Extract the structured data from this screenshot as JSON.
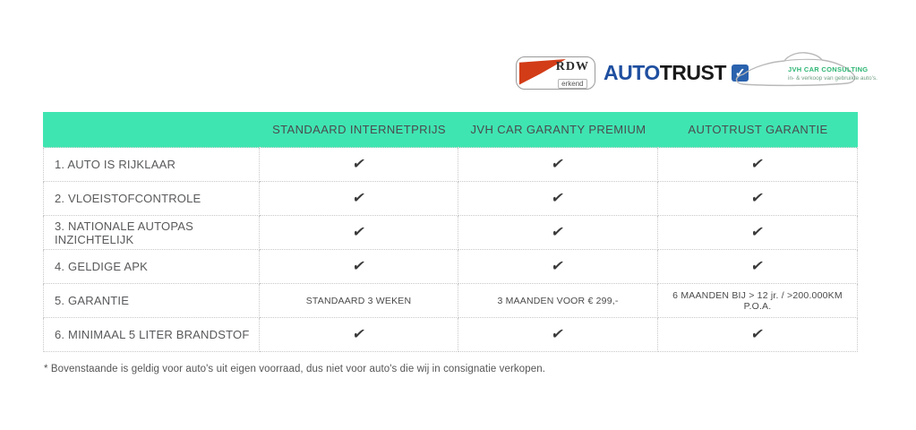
{
  "logos": {
    "rdw": {
      "title": "RDW",
      "subtitle": "erkend"
    },
    "autotrust": {
      "text_primary": "AUTO",
      "text_secondary": "TRUST",
      "check": "✓"
    },
    "jvh": {
      "title": "JVH CAR CONSULTING",
      "subtitle": "in- & verkoop van gebruikte auto's."
    }
  },
  "table": {
    "check_glyph": "✔",
    "columns": [
      "STANDAARD INTERNETPRIJS",
      "JVH CAR GARANTY PREMIUM",
      "AUTOTRUST GARANTIE"
    ],
    "rows": [
      {
        "label": "1. AUTO IS RIJKLAAR",
        "values": [
          "✔",
          "✔",
          "✔"
        ]
      },
      {
        "label": "2. VLOEISTOFCONTROLE",
        "values": [
          "✔",
          "✔",
          "✔"
        ]
      },
      {
        "label": "3. NATIONALE AUTOPAS INZICHTELIJK",
        "values": [
          "✔",
          "✔",
          "✔"
        ]
      },
      {
        "label": "4. GELDIGE APK",
        "values": [
          "✔",
          "✔",
          "✔"
        ]
      },
      {
        "label": "5. GARANTIE",
        "values": [
          "STANDAARD 3 WEKEN",
          "3 MAANDEN VOOR € 299,-",
          "6 MAANDEN BIJ > 12 jr. / >200.000KM P.O.A."
        ]
      },
      {
        "label": "6. MINIMAAL 5 LITER BRANDSTOF",
        "values": [
          "✔",
          "✔",
          "✔"
        ]
      }
    ]
  },
  "footnote": "* Bovenstaande is geldig voor auto's uit eigen voorraad, dus niet voor auto's die wij in consignatie verkopen.",
  "colors": {
    "header_bg": "#3FE5B1",
    "header_text": "#4A4B4D",
    "row_text": "#58595B",
    "check": "#3A3A3A",
    "border": "#C8C8C8",
    "rdw_red": "#D23C17",
    "autotrust_blue": "#1F4FA0",
    "autotrust_black": "#1A1A1A",
    "jvh_green": "#2DB673"
  }
}
